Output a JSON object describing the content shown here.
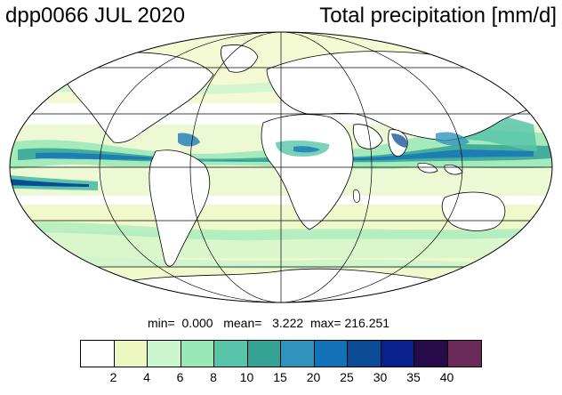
{
  "title_left": "dpp0066 JUL 2020",
  "title_right": "Total precipitation [mm/d]",
  "stats": {
    "min_label": "min=",
    "min": "0.000",
    "mean_label": "mean=",
    "mean": "3.222",
    "max_label": "max=",
    "max": "216.251"
  },
  "colorbar": {
    "colors": [
      "#ffffff",
      "#edf8c0",
      "#cbf5cc",
      "#97e8b5",
      "#58c5a8",
      "#35a296",
      "#2f93be",
      "#1172b8",
      "#0c4b96",
      "#0b2190",
      "#260a4a",
      "#6a2a5a"
    ],
    "labels": [
      "2",
      "4",
      "6",
      "8",
      "10",
      "15",
      "20",
      "25",
      "30",
      "35",
      "40"
    ]
  }
}
